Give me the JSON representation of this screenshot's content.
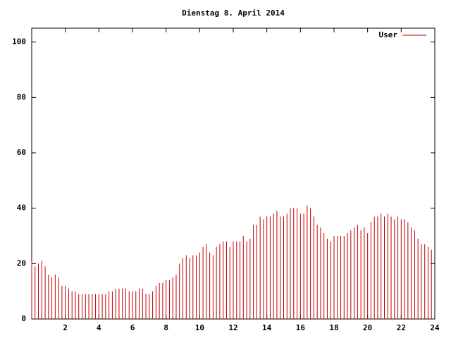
{
  "chart_data": {
    "type": "impulse",
    "title": "Dienstag 8. April 2014",
    "x": [
      0,
      0.2,
      0.4,
      0.6,
      0.8,
      1,
      1.2,
      1.4,
      1.6,
      1.8,
      2,
      2.2,
      2.4,
      2.6,
      2.8,
      3,
      3.2,
      3.4,
      3.6,
      3.8,
      4,
      4.2,
      4.4,
      4.6,
      4.8,
      5,
      5.2,
      5.4,
      5.6,
      5.8,
      6,
      6.2,
      6.4,
      6.6,
      6.8,
      7,
      7.2,
      7.4,
      7.6,
      7.8,
      8,
      8.2,
      8.4,
      8.6,
      8.8,
      9,
      9.2,
      9.4,
      9.6,
      9.8,
      10,
      10.2,
      10.4,
      10.6,
      10.8,
      11,
      11.2,
      11.4,
      11.6,
      11.8,
      12,
      12.2,
      12.4,
      12.6,
      12.8,
      13,
      13.2,
      13.4,
      13.6,
      13.8,
      14,
      14.2,
      14.4,
      14.6,
      14.8,
      15,
      15.2,
      15.4,
      15.6,
      15.8,
      16,
      16.2,
      16.4,
      16.6,
      16.8,
      17,
      17.2,
      17.4,
      17.6,
      17.8,
      18,
      18.2,
      18.4,
      18.6,
      18.8,
      19,
      19.2,
      19.4,
      19.6,
      19.8,
      20,
      20.2,
      20.4,
      20.6,
      20.8,
      21,
      21.2,
      21.4,
      21.6,
      21.8,
      22,
      22.2,
      22.4,
      22.6,
      22.8,
      23,
      23.2,
      23.4,
      23.6,
      23.8
    ],
    "series": [
      {
        "name": "User",
        "color": "#c00000",
        "values": [
          21,
          19,
          20,
          21,
          19,
          16,
          15,
          16,
          15,
          12,
          12,
          11,
          10,
          10,
          9,
          9,
          9,
          9,
          9,
          9,
          9,
          9,
          9,
          10,
          10,
          11,
          11,
          11,
          11,
          10,
          10,
          10,
          11,
          11,
          9,
          9,
          10,
          12,
          13,
          13,
          14,
          14,
          15,
          16,
          20,
          22,
          23,
          22,
          23,
          23,
          24,
          26,
          27,
          24,
          23,
          26,
          27,
          28,
          28,
          26,
          28,
          28,
          28,
          30,
          28,
          29,
          34,
          34,
          37,
          36,
          37,
          37,
          38,
          39,
          37,
          37,
          38,
          40,
          40,
          40,
          38,
          38,
          41,
          40,
          37,
          34,
          33,
          31,
          29,
          28,
          30,
          30,
          30,
          30,
          31,
          32,
          33,
          34,
          32,
          33,
          31,
          35,
          37,
          37,
          38,
          37,
          38,
          37,
          36,
          37,
          36,
          36,
          35,
          33,
          32,
          29,
          27,
          27,
          26,
          25
        ]
      }
    ],
    "xlim": [
      0,
      24
    ],
    "xticks": [
      2,
      4,
      6,
      8,
      10,
      12,
      14,
      16,
      18,
      20,
      22,
      24
    ],
    "ylim": [
      0,
      105
    ],
    "yticks": [
      0,
      20,
      40,
      60,
      80,
      100
    ],
    "legend": "top-right"
  }
}
